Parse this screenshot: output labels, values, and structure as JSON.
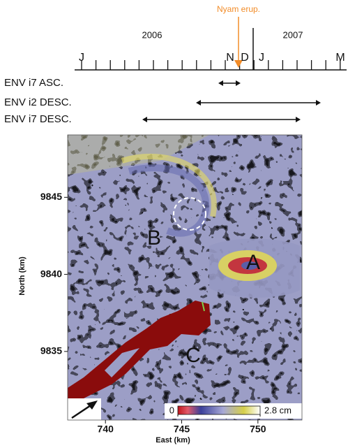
{
  "timeline": {
    "event": "Nyam erup.",
    "years": [
      "2006",
      "2007"
    ],
    "months": [
      "J",
      "N",
      "D",
      "J",
      "M"
    ],
    "tracks": [
      "ENV i7 ASC.",
      "ENV i2 DESC.",
      "ENV i7 DESC."
    ]
  },
  "map": {
    "xlabel": "East (km)",
    "ylabel": "North (km)",
    "xlim": [
      737.52,
      752.89
    ],
    "ylim": [
      9830.55,
      9849.05
    ],
    "xticks": [
      740,
      745,
      750
    ],
    "yticks": [
      9835,
      9840,
      9845
    ],
    "labels": [
      "A",
      "B",
      "C"
    ],
    "colorbar": {
      "ticks": [
        0,
        {
          "value": 2.8,
          "label": "2.8 cm"
        }
      ]
    }
  }
}
